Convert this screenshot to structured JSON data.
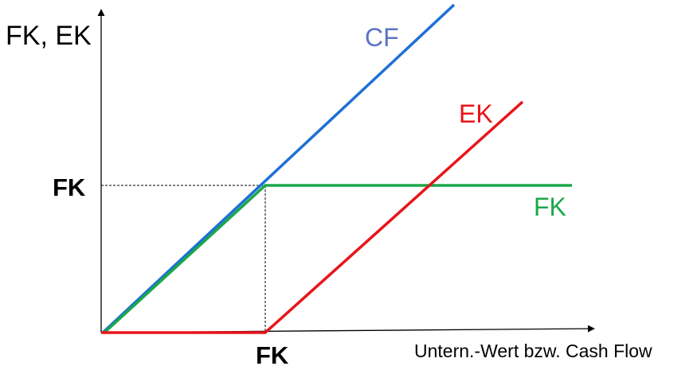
{
  "axes": {
    "y_label": "FK, EK",
    "x_label": "Untern.-Wert bzw. Cash Flow"
  },
  "markers": {
    "y_tick_label": "FK",
    "x_tick_label": "FK"
  },
  "lines": {
    "cf": {
      "label": "CF",
      "color": "#1f6fd6"
    },
    "ek": {
      "label": "EK",
      "color": "#e8141a"
    },
    "fk": {
      "label": "FK",
      "color": "#1aa84a"
    }
  },
  "colors": {
    "axis": "#000000",
    "cf_label": "#5c73c4",
    "guide": "#000000"
  }
}
